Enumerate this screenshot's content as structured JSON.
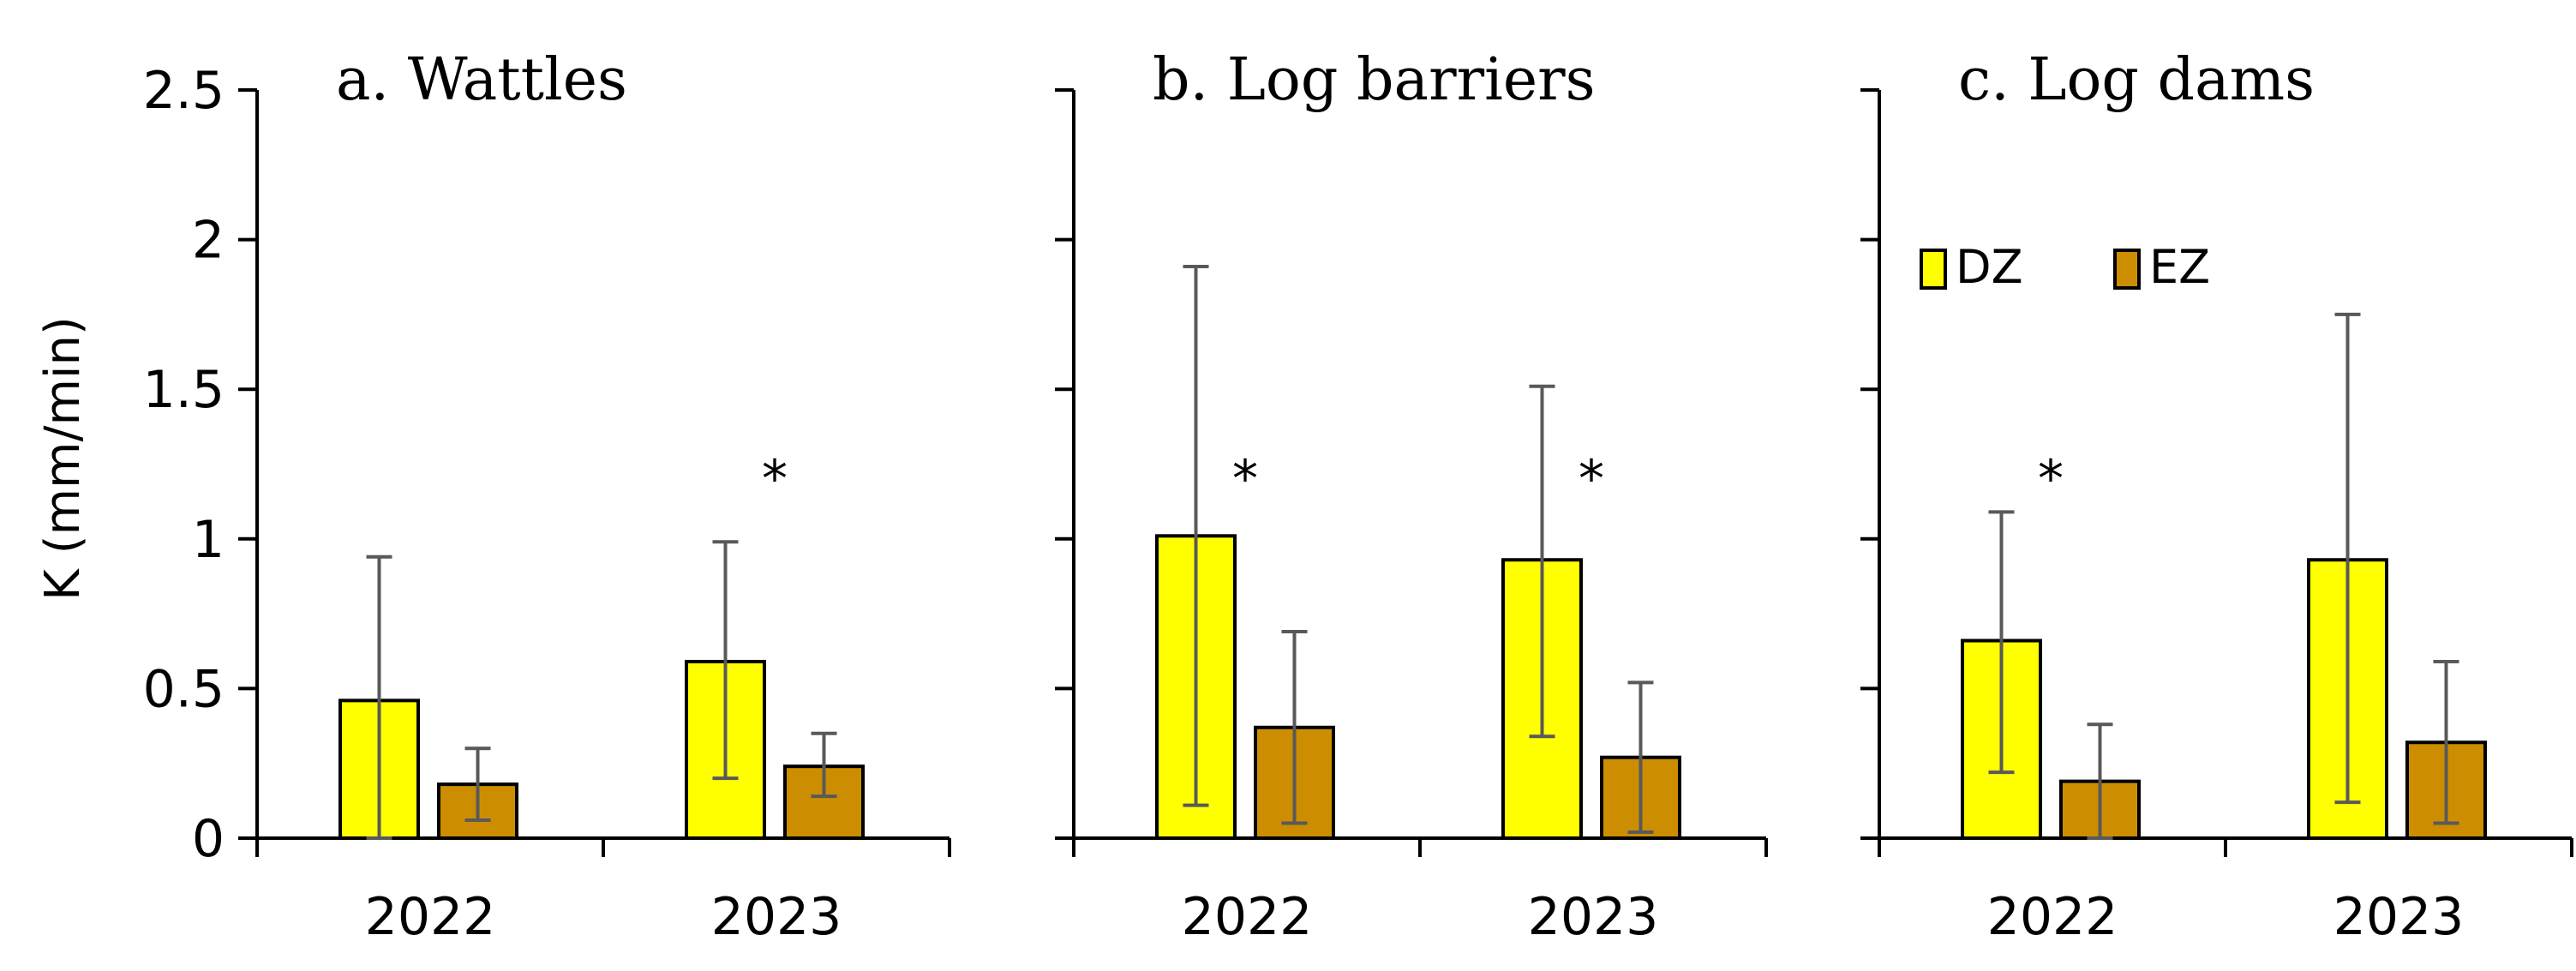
{
  "chart_data": {
    "type": "bar",
    "ylabel": "K (mm/min)",
    "ylim": [
      0,
      2.5
    ],
    "yticks": [
      "0",
      "0.5",
      "1",
      "1.5",
      "2",
      "2.5"
    ],
    "categories": [
      "2022",
      "2023"
    ],
    "series_names": [
      "DZ",
      "EZ"
    ],
    "colors": {
      "DZ": "#ffff00",
      "EZ": "#cc8e00",
      "error_bar": "#595959",
      "outline": "#000000"
    },
    "legend": {
      "placement": "panel c, upper area",
      "entries": [
        "DZ",
        "EZ"
      ]
    },
    "grid": false,
    "panels": [
      {
        "title": "a. Wattles",
        "series": [
          {
            "name": "DZ",
            "values": [
              0.46,
              0.59
            ],
            "error_low": [
              0.0,
              0.2
            ],
            "error_high": [
              0.94,
              0.99
            ]
          },
          {
            "name": "EZ",
            "values": [
              0.18,
              0.24
            ],
            "error_low": [
              0.06,
              0.14
            ],
            "error_high": [
              0.3,
              0.35
            ]
          }
        ],
        "significance": [
          {
            "category": "2023",
            "label": "*",
            "y": 1.24
          }
        ]
      },
      {
        "title": "b. Log barriers",
        "series": [
          {
            "name": "DZ",
            "values": [
              1.01,
              0.93
            ],
            "error_low": [
              0.11,
              0.34
            ],
            "error_high": [
              1.91,
              1.51
            ]
          },
          {
            "name": "EZ",
            "values": [
              0.37,
              0.27
            ],
            "error_low": [
              0.05,
              0.02
            ],
            "error_high": [
              0.69,
              0.52
            ]
          }
        ],
        "significance": [
          {
            "category": "2022",
            "label": "*",
            "y": 1.24
          },
          {
            "category": "2023",
            "label": "*",
            "y": 1.24
          }
        ]
      },
      {
        "title": "c. Log dams",
        "series": [
          {
            "name": "DZ",
            "values": [
              0.66,
              0.93
            ],
            "error_low": [
              0.22,
              0.12
            ],
            "error_high": [
              1.09,
              1.75
            ]
          },
          {
            "name": "EZ",
            "values": [
              0.19,
              0.32
            ],
            "error_low": [
              0.0,
              0.05
            ],
            "error_high": [
              0.38,
              0.59
            ]
          }
        ],
        "significance": [
          {
            "category": "2022",
            "label": "*",
            "y": 1.24
          }
        ]
      }
    ]
  }
}
